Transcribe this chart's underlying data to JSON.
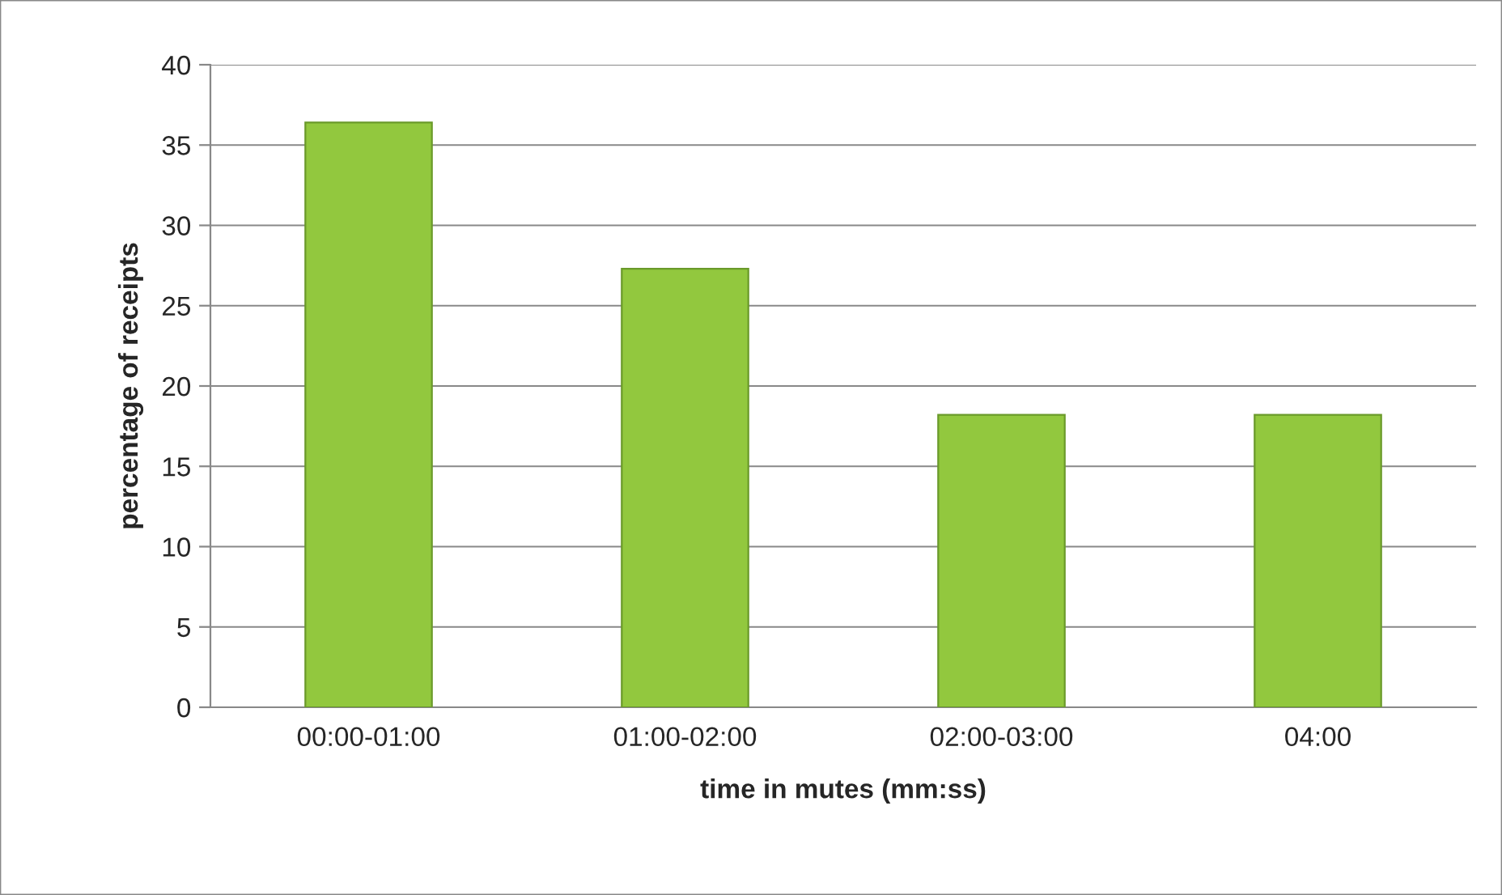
{
  "chart_data": {
    "type": "bar",
    "xlabel": "time in mutes (mm:ss)",
    "ylabel": "percentage of receipts",
    "categories": [
      "00:00-01:00",
      "01:00-02:00",
      "02:00-03:00",
      "04:00"
    ],
    "values": [
      36.4,
      27.3,
      18.2,
      18.2
    ],
    "color": "#92c83e",
    "ylim": [
      0,
      40
    ],
    "yticks": [
      0,
      5,
      10,
      15,
      20,
      25,
      30,
      35,
      40
    ],
    "grid": "y",
    "legend": false
  }
}
